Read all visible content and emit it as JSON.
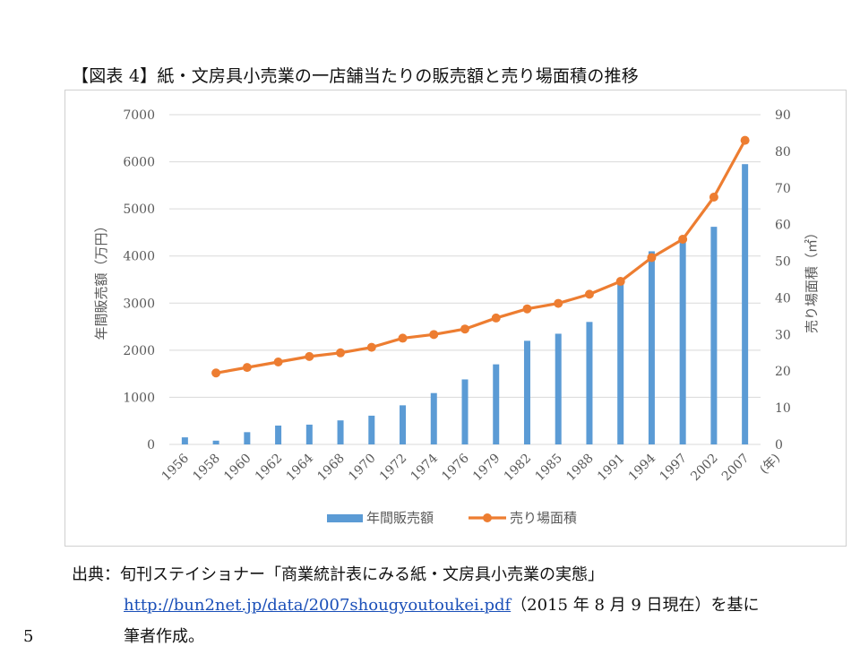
{
  "figure": {
    "title": "【図表 4】紙・文房具小売業の一店舗当たりの販売額と売り場面積の推移"
  },
  "chart_data": {
    "type": "bar+line",
    "categories": [
      "1956",
      "1958",
      "1960",
      "1962",
      "1964",
      "1968",
      "1970",
      "1972",
      "1974",
      "1976",
      "1979",
      "1982",
      "1985",
      "1988",
      "1991",
      "1994",
      "1997",
      "2002",
      "2007"
    ],
    "x_unit_label": "(年)",
    "series": [
      {
        "name": "年間販売額",
        "type": "bar",
        "axis": "left",
        "color": "#5b9bd5",
        "values": [
          150,
          80,
          260,
          400,
          420,
          510,
          610,
          830,
          1090,
          1380,
          1700,
          2200,
          2350,
          2600,
          3500,
          4100,
          4300,
          4620,
          5950
        ]
      },
      {
        "name": "売り場面積",
        "type": "line",
        "axis": "right",
        "color": "#ed7d31",
        "values": [
          null,
          19.5,
          21,
          22.5,
          24,
          25,
          26.5,
          29,
          30,
          31.5,
          34.5,
          37,
          38.5,
          41,
          44.5,
          51,
          56,
          67.5,
          83
        ]
      }
    ],
    "y_left": {
      "label": "年間販売額（万円）",
      "min": 0,
      "max": 7000,
      "ticks": [
        "0",
        "1000",
        "2000",
        "3000",
        "4000",
        "5000",
        "6000",
        "7000"
      ]
    },
    "y_right": {
      "label": "売り場面積（㎡）",
      "min": 0,
      "max": 90,
      "ticks": [
        "0",
        "10",
        "20",
        "30",
        "40",
        "50",
        "60",
        "70",
        "80",
        "90"
      ]
    },
    "grid": true,
    "legend_position": "bottom"
  },
  "source": {
    "line1": "出典：旬刊ステイショナー「商業統計表にみる紙・文房具小売業の実態」",
    "url": "http://bun2net.jp/data/2007shougyoutoukei.pdf",
    "line2_suffix": "（2015 年 8 月 9 日現在）を基に",
    "line3": "筆者作成。"
  },
  "page_number": "5"
}
